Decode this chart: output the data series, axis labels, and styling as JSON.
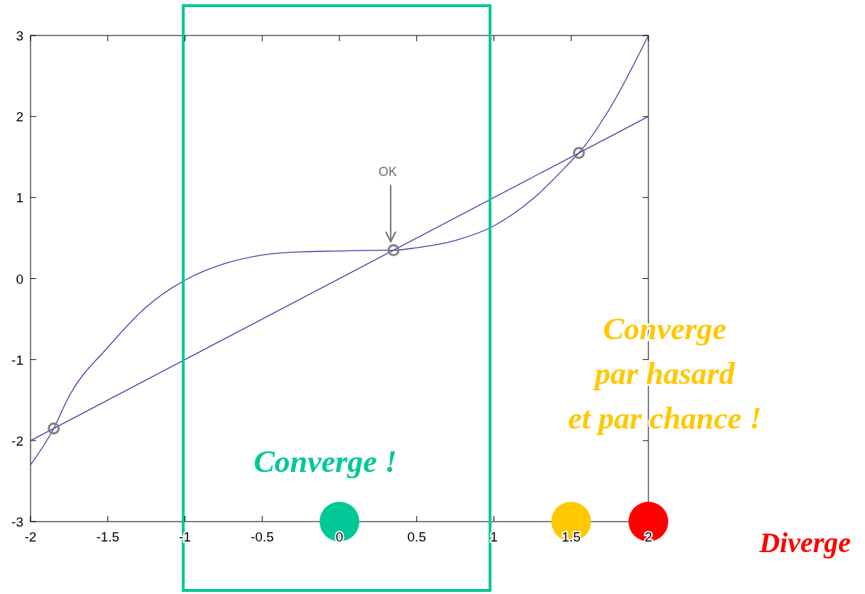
{
  "chart_data": {
    "type": "line",
    "xlim": [
      -2,
      2
    ],
    "ylim": [
      -3,
      3
    ],
    "xticks": [
      -2,
      -1.5,
      -1,
      -0.5,
      0,
      0.5,
      1,
      1.5,
      2
    ],
    "yticks": [
      -3,
      -2,
      -1,
      0,
      1,
      2,
      3
    ],
    "grid": false,
    "series": [
      {
        "color": "#3a3aa0",
        "x": [
          -2,
          2
        ],
        "values": [
          -2,
          2
        ]
      },
      {
        "color": "#3a3aa0",
        "x": [
          -2,
          -1.85,
          -1.75,
          -1.5,
          -1.25,
          -1,
          -0.75,
          -0.5,
          -0.25,
          0,
          0.25,
          0.35,
          0.5,
          0.75,
          1,
          1.25,
          1.5,
          1.55,
          1.75,
          2
        ],
        "values": [
          -2.3,
          -1.85,
          -1.45,
          -0.85,
          -0.35,
          -0.02,
          0.18,
          0.29,
          0.33,
          0.34,
          0.35,
          0.35,
          0.38,
          0.47,
          0.65,
          0.98,
          1.45,
          1.55,
          2.1,
          3
        ]
      },
      {
        "type": "scatter",
        "color": "#808080",
        "marker": "circle",
        "x": [
          -1.85,
          0.35,
          1.55
        ],
        "values": [
          -1.85,
          0.35,
          1.55
        ]
      },
      {
        "type": "scatter",
        "colors": [
          "#00c896",
          "#ffc800",
          "#ff0000"
        ],
        "marker": "circle",
        "x": [
          0,
          1.5,
          2
        ],
        "values": [
          -3,
          -3,
          -3
        ]
      }
    ],
    "annotations": [
      "OK",
      "Converge !",
      "Converge\npar hasard\net par chance !",
      "Diverge"
    ]
  }
}
